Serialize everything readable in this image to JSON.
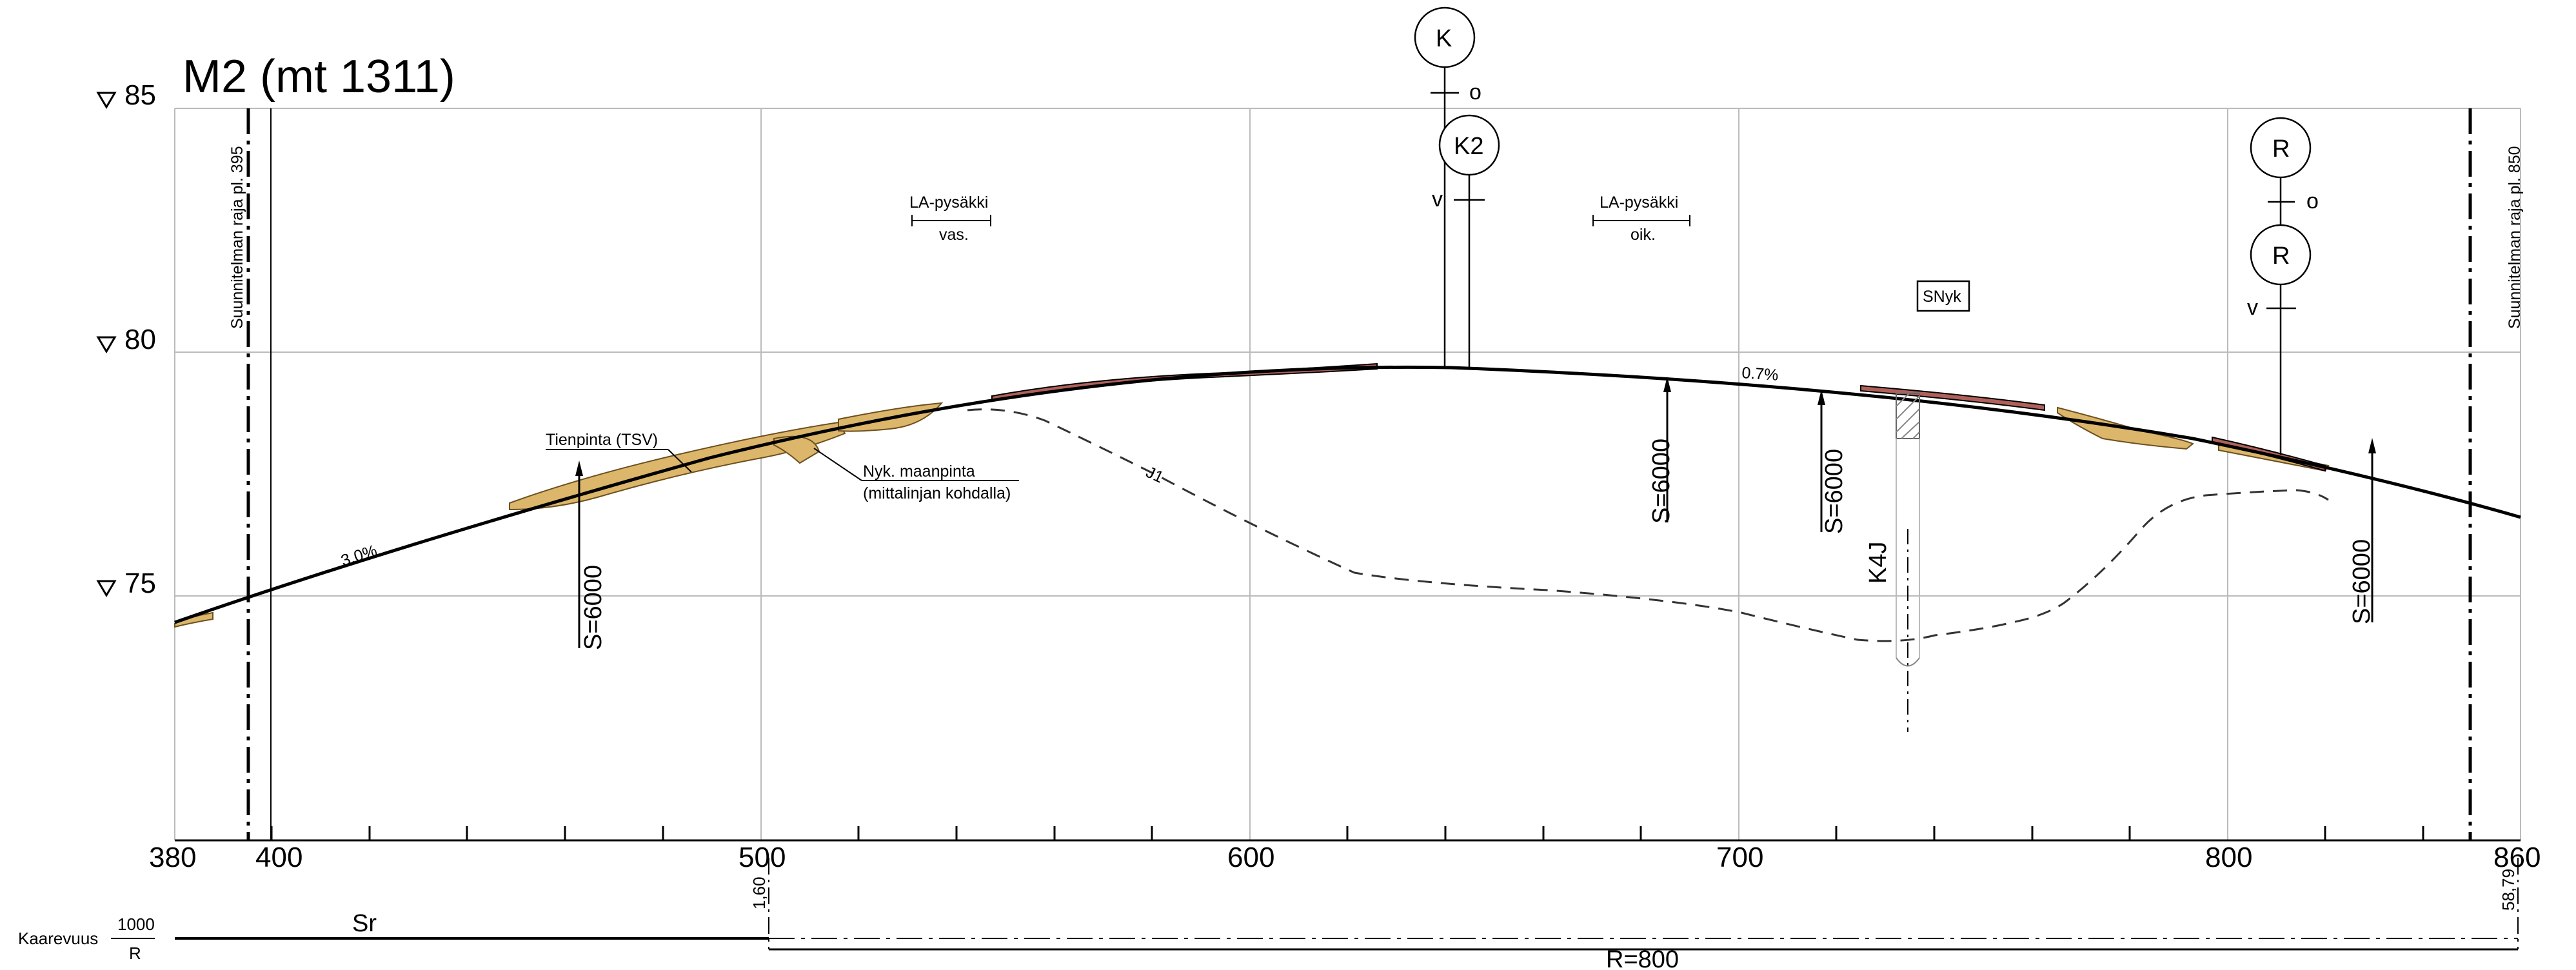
{
  "title": "M2  (mt 1311)",
  "elevation_labels": [
    "85",
    "80",
    "75"
  ],
  "station_labels": [
    "380",
    "400",
    "500",
    "600",
    "700",
    "800",
    "860"
  ],
  "boundary_labels": {
    "left": "Suunnitelman raja pl. 395",
    "right": "Suunnitelman raja pl. 850"
  },
  "bus_stop_left": {
    "title": "LA-pysäkki",
    "side": "vas."
  },
  "bus_stop_right": {
    "title": "LA-pysäkki",
    "side": "oik."
  },
  "road_surface_label": "Tienpinta (TSV)",
  "ground_label_line1": "Nyk. maanpinta",
  "ground_label_line2": "(mittalinjan kohdalla)",
  "grade_labels": {
    "left": "3.0%",
    "right": "0.7%",
    "mid": "J1"
  },
  "vertical_curves": [
    "S=6000",
    "S=6000",
    "S=6000",
    "S=6000"
  ],
  "culvert_label": "K4J",
  "snyk_label": "SNyk",
  "signs": {
    "k": "K",
    "k2": "K2",
    "r_top": "R",
    "r_bottom": "R",
    "o": "o",
    "v": "v"
  },
  "curvature": {
    "row_label": "Kaarevuus",
    "fraction_top": "1000",
    "fraction_bottom": "R",
    "straight": "Sr",
    "radius": "R=800",
    "start_station": "1,60",
    "end_station": "58,79"
  },
  "colors": {
    "fill_ground": "#dcb66a",
    "pavement": "#b0605a",
    "grid": "#bbbbbb"
  }
}
